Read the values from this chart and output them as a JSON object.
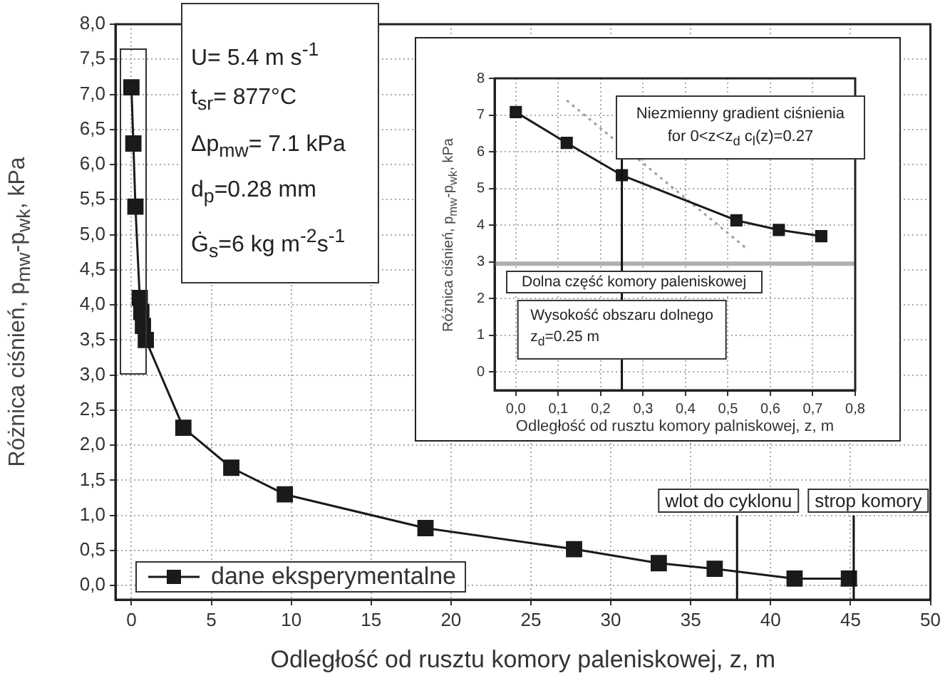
{
  "chart_data": [
    {
      "type": "line",
      "xlabel": "Odległość od rusztu komory paleniskowej, z, m",
      "ylabel": "Różnica ciśnień, p$_{mw}$-p$_{wk}$, kPa",
      "x": [
        0,
        0.12,
        0.25,
        0.52,
        0.62,
        0.72,
        0.9,
        3.25,
        6.25,
        9.6,
        18.4,
        27.7,
        33.0,
        36.5,
        41.5,
        44.9
      ],
      "series": [
        {
          "name": "dane eksperymentalne",
          "color": "#1a1a1a",
          "values": [
            7.1,
            6.3,
            5.4,
            4.1,
            3.9,
            3.7,
            3.5,
            2.25,
            1.68,
            1.3,
            0.82,
            0.52,
            0.32,
            0.24,
            0.1,
            0.1
          ]
        }
      ],
      "xlim": [
        -1,
        50
      ],
      "xticks": [
        0,
        5,
        10,
        15,
        20,
        25,
        30,
        35,
        40,
        45,
        50
      ],
      "ylim": [
        -0.2,
        8
      ],
      "yticks": [
        {
          "value": 0,
          "label": "0,0"
        },
        {
          "value": 0.5,
          "label": "0,5"
        },
        {
          "value": 1,
          "label": "1,0"
        },
        {
          "value": 1.5,
          "label": "1,5"
        },
        {
          "value": 2,
          "label": "2,0"
        },
        {
          "value": 2.5,
          "label": "2,5"
        },
        {
          "value": 3,
          "label": "3,0"
        },
        {
          "value": 3.5,
          "label": "3,5"
        },
        {
          "value": 4,
          "label": "4,0"
        },
        {
          "value": 4.5,
          "label": "4,5"
        },
        {
          "value": 5,
          "label": "5,0"
        },
        {
          "value": 5.5,
          "label": "5,5"
        },
        {
          "value": 6,
          "label": "6,0"
        },
        {
          "value": 6.5,
          "label": "6,5"
        },
        {
          "value": 7,
          "label": "7,0"
        },
        {
          "value": 7.5,
          "label": "7,5"
        },
        {
          "value": 8,
          "label": "8,0"
        }
      ],
      "ref_lines": [
        {
          "axis": "x",
          "value": 37.9,
          "label": "wlot do cyklonu"
        },
        {
          "axis": "x",
          "value": 45.2,
          "label": "strop komory"
        }
      ],
      "annotations": [
        "U= 5.4 m s$^{-1}$",
        "t$_{sr}$= 877°C",
        "Δp$_{mw}$= 7.1 kPa",
        "d$_{p}$=0.28 mm",
        "Ġ$_{s}$=6 kg m$^{-2}$s$^{-1}$"
      ],
      "grid": true,
      "legend": "bottom left",
      "marker": "square",
      "line_style": "solid"
    },
    {
      "type": "line",
      "xlabel": "Odległość od rusztu komory palniskowej, z, m",
      "ylabel": "Różnica ciśnień, p$_{mw}$-p$_{wk}$, kPa",
      "x": [
        0,
        0.12,
        0.25,
        0.52,
        0.62,
        0.72
      ],
      "series": [
        {
          "color": "#1a1a1a",
          "values": [
            7.08,
            6.24,
            5.36,
            4.13,
            3.87,
            3.7
          ]
        },
        {
          "type": "line",
          "x": [
            0.12,
            0.54
          ],
          "color": "#a0a0a0",
          "values": [
            7.4,
            3.4
          ],
          "marker": "none",
          "line_style": "dotted"
        }
      ],
      "xlim": [
        -0.05,
        0.8
      ],
      "xticks": [
        {
          "value": 0,
          "label": "0,0"
        },
        {
          "value": 0.1,
          "label": "0,1"
        },
        {
          "value": 0.2,
          "label": "0,2"
        },
        {
          "value": 0.3,
          "label": "0,3"
        },
        {
          "value": 0.4,
          "label": "0,4"
        },
        {
          "value": 0.5,
          "label": "0,5"
        },
        {
          "value": 0.6,
          "label": "0,6"
        },
        {
          "value": 0.7,
          "label": "0,7"
        },
        {
          "value": 0.8,
          "label": "0,8"
        }
      ],
      "ylim": [
        -0.5,
        8
      ],
      "yticks": [
        0,
        1,
        2,
        3,
        4,
        5,
        6,
        7,
        8
      ],
      "ref_lines": [
        {
          "axis": "y",
          "value": 2.95,
          "label": "Dolna część komory paleniskowej",
          "color": "#b0b0b0"
        },
        {
          "axis": "x",
          "value": 0.25,
          "label": "Wysokość obszaru dolnego z$_{d}$=0.25 m"
        }
      ],
      "annotations": [
        "Niezmienny gradient ciśnienia",
        "for 0<z<z$_{d}$ c$_{l}$(z)=0.27"
      ],
      "grid": true,
      "marker": "square",
      "line_style": "solid"
    }
  ]
}
